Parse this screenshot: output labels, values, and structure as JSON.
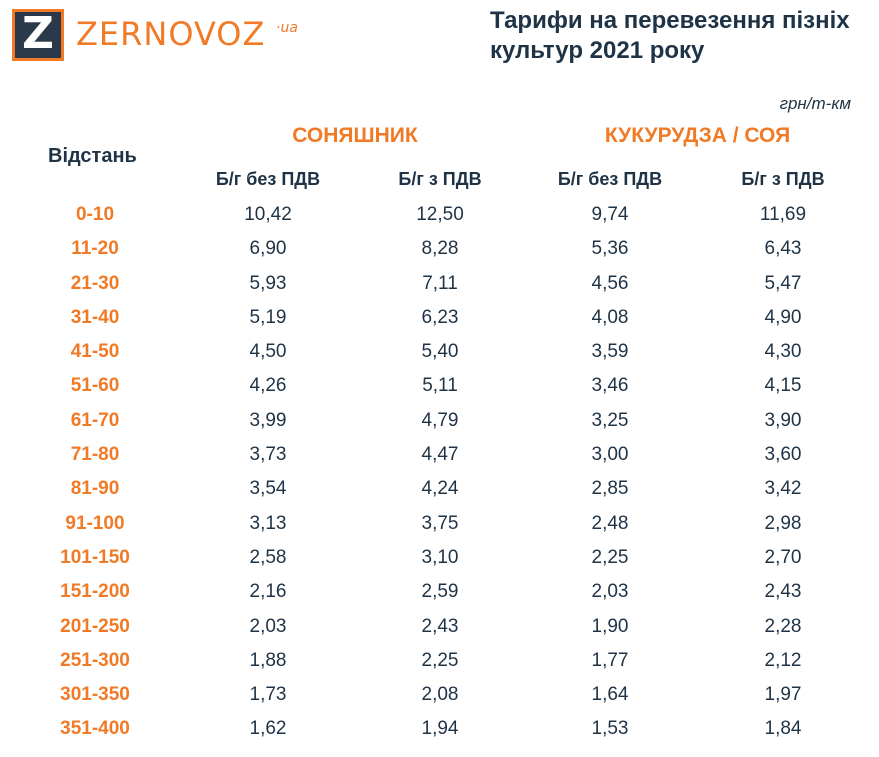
{
  "header": {
    "logo_letter": "Z",
    "brand": "ZERNOVOZ",
    "brand_sub": "·ua",
    "title": "Тарифи на перевезення пізніх культур 2021 року",
    "unit": "грн/т-км"
  },
  "table": {
    "distance_header": "Відстань",
    "groups": [
      {
        "name": "СОНЯШНИК",
        "columns": [
          "Б/г без ПДВ",
          "Б/г з ПДВ"
        ]
      },
      {
        "name": "КУКУРУДЗА / СОЯ",
        "columns": [
          "Б/г без ПДВ",
          "Б/г з ПДВ"
        ]
      }
    ],
    "rows": [
      {
        "distance": "0-10",
        "values": [
          "10,42",
          "12,50",
          "9,74",
          "11,69"
        ]
      },
      {
        "distance": "11-20",
        "values": [
          "6,90",
          "8,28",
          "5,36",
          "6,43"
        ]
      },
      {
        "distance": "21-30",
        "values": [
          "5,93",
          "7,11",
          "4,56",
          "5,47"
        ]
      },
      {
        "distance": "31-40",
        "values": [
          "5,19",
          "6,23",
          "4,08",
          "4,90"
        ]
      },
      {
        "distance": "41-50",
        "values": [
          "4,50",
          "5,40",
          "3,59",
          "4,30"
        ]
      },
      {
        "distance": "51-60",
        "values": [
          "4,26",
          "5,11",
          "3,46",
          "4,15"
        ]
      },
      {
        "distance": "61-70",
        "values": [
          "3,99",
          "4,79",
          "3,25",
          "3,90"
        ]
      },
      {
        "distance": "71-80",
        "values": [
          "3,73",
          "4,47",
          "3,00",
          "3,60"
        ]
      },
      {
        "distance": "81-90",
        "values": [
          "3,54",
          "4,24",
          "2,85",
          "3,42"
        ]
      },
      {
        "distance": "91-100",
        "values": [
          "3,13",
          "3,75",
          "2,48",
          "2,98"
        ]
      },
      {
        "distance": "101-150",
        "values": [
          "2,58",
          "3,10",
          "2,25",
          "2,70"
        ]
      },
      {
        "distance": "151-200",
        "values": [
          "2,16",
          "2,59",
          "2,03",
          "2,43"
        ]
      },
      {
        "distance": "201-250",
        "values": [
          "2,03",
          "2,43",
          "1,90",
          "2,28"
        ]
      },
      {
        "distance": "251-300",
        "values": [
          "1,88",
          "2,25",
          "1,77",
          "2,12"
        ]
      },
      {
        "distance": "301-350",
        "values": [
          "1,73",
          "2,08",
          "1,64",
          "1,97"
        ]
      },
      {
        "distance": "351-400",
        "values": [
          "1,62",
          "1,94",
          "1,53",
          "1,84"
        ]
      }
    ]
  },
  "colors": {
    "accent": "#f07a26",
    "text": "#1f3346",
    "logo_bg": "#2b3a4a"
  }
}
